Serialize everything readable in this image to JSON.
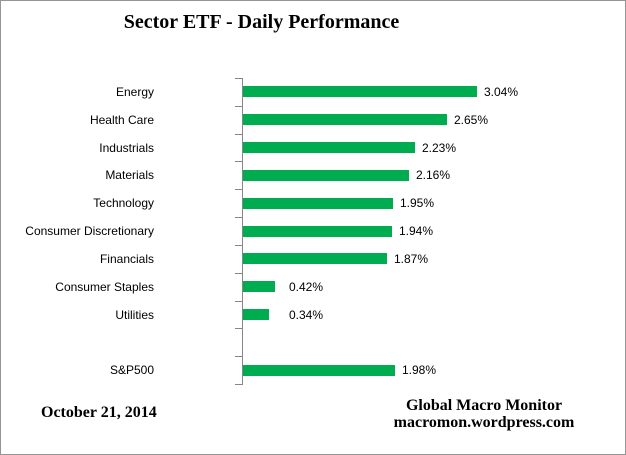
{
  "title": "Sector ETF - Daily Performance",
  "footer": {
    "date": "October 21, 2014",
    "source_line1": "Global Macro Monitor",
    "source_line2": "macromon.wordpress.com"
  },
  "chart_data": {
    "type": "bar",
    "orientation": "horizontal",
    "title": "Sector ETF - Daily Performance",
    "categories": [
      "Energy",
      "Health Care",
      "Industrials",
      "Materials",
      "Technology",
      "Consumer Discretionary",
      "Financials",
      "Consumer Staples",
      "Utilities",
      "",
      "S&P500"
    ],
    "values": [
      3.04,
      2.65,
      2.23,
      2.16,
      1.95,
      1.94,
      1.87,
      0.42,
      0.34,
      null,
      1.98
    ],
    "value_labels": [
      "3.04%",
      "2.65%",
      "2.23%",
      "2.16%",
      "1.95%",
      "1.94%",
      "1.87%",
      "0.42%",
      "0.34%",
      "",
      "1.98%"
    ],
    "xlabel": "",
    "ylabel": "",
    "xlim": [
      0,
      3.5
    ],
    "gridlines": false,
    "legend": "none",
    "data_label_position": "outside-end",
    "bar_color": "#00AC50",
    "axis_color": "#868686",
    "text_color": "#000000"
  }
}
